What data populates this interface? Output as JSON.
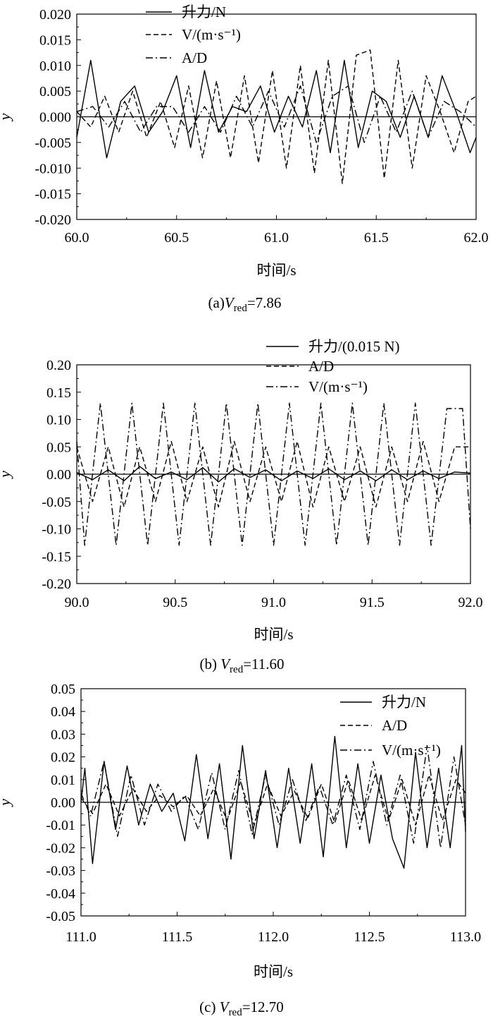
{
  "chart_data": [
    {
      "type": "line",
      "xlabel": "时间/s",
      "ylabel": "y",
      "xlim": [
        60.0,
        62.0
      ],
      "ylim": [
        -0.02,
        0.02
      ],
      "x_ticks": [
        "60.0",
        "60.5",
        "61.0",
        "61.5",
        "62.0"
      ],
      "y_ticks": [
        "0.020",
        "0.015",
        "0.010",
        "0.005",
        "0.000",
        "-0.005",
        "-0.010",
        "-0.015",
        "-0.020"
      ],
      "caption": {
        "prefix": "(a)",
        "sym": "V",
        "sub": "red",
        "value": "=7.86"
      },
      "legend_position": "top-center",
      "series": [
        {
          "name": "升力/N",
          "style": "solid",
          "x": [
            60.0,
            60.07,
            60.15,
            60.22,
            60.29,
            60.36,
            60.43,
            60.5,
            60.57,
            60.64,
            60.71,
            60.78,
            60.85,
            60.92,
            60.99,
            61.06,
            61.13,
            61.2,
            61.27,
            61.34,
            61.41,
            61.48,
            61.55,
            61.62,
            61.69,
            61.76,
            61.83,
            61.9,
            61.97,
            62.0
          ],
          "values": [
            -0.004,
            0.011,
            -0.008,
            0.003,
            0.006,
            -0.003,
            0.001,
            0.008,
            -0.006,
            0.009,
            -0.003,
            0.002,
            0.001,
            0.006,
            -0.003,
            0.004,
            -0.002,
            0.009,
            -0.007,
            0.011,
            -0.006,
            0.005,
            0.003,
            -0.004,
            0.004,
            -0.004,
            0.008,
            0.001,
            -0.007,
            -0.004
          ]
        },
        {
          "name": "V/(m·s⁻¹)",
          "style": "dash",
          "x": [
            60.0,
            60.07,
            60.14,
            60.21,
            60.28,
            60.35,
            60.42,
            60.49,
            60.56,
            60.63,
            60.7,
            60.77,
            60.84,
            60.91,
            60.98,
            61.05,
            61.12,
            61.19,
            61.26,
            61.33,
            61.4,
            61.47,
            61.54,
            61.61,
            61.68,
            61.75,
            61.82,
            61.89,
            61.96,
            62.0
          ],
          "values": [
            0.001,
            -0.002,
            0.004,
            -0.003,
            0.005,
            -0.004,
            0.003,
            -0.006,
            0.006,
            -0.008,
            0.007,
            -0.008,
            0.008,
            -0.009,
            0.009,
            -0.01,
            0.01,
            -0.011,
            0.011,
            -0.013,
            0.012,
            0.013,
            -0.012,
            0.011,
            -0.01,
            0.008,
            0.001,
            -0.007,
            0.003,
            0.004
          ]
        },
        {
          "name": "A/D",
          "style": "dashdot",
          "x": [
            60.0,
            60.08,
            60.16,
            60.24,
            60.32,
            60.4,
            60.48,
            60.56,
            60.64,
            60.72,
            60.8,
            60.88,
            60.96,
            61.04,
            61.12,
            61.2,
            61.28,
            61.36,
            61.44,
            61.52,
            61.6,
            61.68,
            61.76,
            61.84,
            61.92,
            62.0
          ],
          "values": [
            0.001,
            0.002,
            -0.002,
            0.003,
            -0.003,
            0.002,
            0.002,
            -0.003,
            0.002,
            -0.003,
            0.004,
            -0.002,
            0.005,
            -0.002,
            0.006,
            -0.005,
            0.004,
            0.006,
            -0.005,
            0.004,
            -0.003,
            0.005,
            -0.004,
            0.003,
            0.001,
            -0.002
          ]
        }
      ]
    },
    {
      "type": "line",
      "xlabel": "时间/s",
      "ylabel": "y",
      "xlim": [
        90.0,
        92.0
      ],
      "ylim": [
        -0.2,
        0.2
      ],
      "x_ticks": [
        "90.0",
        "90.5",
        "91.0",
        "91.5",
        "92.0"
      ],
      "y_ticks": [
        "0.20",
        "0.15",
        "0.10",
        "0.05",
        "0.00",
        "-0.05",
        "-0.10",
        "-0.15",
        "-0.20"
      ],
      "caption": {
        "prefix": "(b) ",
        "sym": "V",
        "sub": "red",
        "value": "=11.60"
      },
      "legend_position": "top-right",
      "series": [
        {
          "name": "升力/(0.015 N)",
          "style": "solid",
          "x": [
            90.0,
            90.08,
            90.16,
            90.24,
            90.32,
            90.4,
            90.48,
            90.56,
            90.64,
            90.72,
            90.8,
            90.88,
            90.96,
            91.04,
            91.12,
            91.2,
            91.28,
            91.36,
            91.44,
            91.52,
            91.6,
            91.68,
            91.76,
            91.84,
            91.92,
            92.0
          ],
          "values": [
            0.003,
            -0.01,
            0.008,
            -0.012,
            0.014,
            -0.008,
            0.004,
            -0.01,
            0.012,
            -0.014,
            0.01,
            -0.006,
            0.008,
            -0.012,
            0.006,
            -0.008,
            0.01,
            -0.01,
            0.006,
            -0.012,
            0.008,
            -0.01,
            0.006,
            -0.008,
            0.004,
            0.002
          ]
        },
        {
          "name": "A/D",
          "style": "dash",
          "x": [
            90.0,
            90.08,
            90.16,
            90.24,
            90.32,
            90.4,
            90.48,
            90.56,
            90.64,
            90.72,
            90.8,
            90.88,
            90.96,
            91.04,
            91.12,
            91.2,
            91.28,
            91.36,
            91.44,
            91.52,
            91.6,
            91.68,
            91.76,
            91.84,
            91.92,
            92.0
          ],
          "values": [
            0.05,
            -0.05,
            0.05,
            -0.06,
            0.05,
            -0.05,
            0.06,
            -0.05,
            0.05,
            -0.06,
            0.06,
            -0.05,
            0.05,
            -0.05,
            0.06,
            -0.06,
            0.05,
            -0.05,
            0.05,
            -0.06,
            0.05,
            -0.05,
            0.06,
            -0.05,
            0.05,
            0.05
          ]
        },
        {
          "name": "V/(m·s⁻¹)",
          "style": "dashdot",
          "x": [
            90.0,
            90.04,
            90.12,
            90.2,
            90.28,
            90.36,
            90.44,
            90.52,
            90.6,
            90.68,
            90.76,
            90.84,
            90.92,
            91.0,
            91.08,
            91.16,
            91.24,
            91.32,
            91.4,
            91.48,
            91.56,
            91.64,
            91.72,
            91.8,
            91.88,
            91.96,
            92.0
          ],
          "values": [
            0.06,
            -0.13,
            0.13,
            -0.13,
            0.13,
            -0.13,
            0.13,
            -0.13,
            0.13,
            -0.13,
            0.13,
            -0.13,
            0.13,
            -0.13,
            0.13,
            -0.13,
            0.13,
            -0.13,
            0.13,
            -0.13,
            0.13,
            -0.13,
            0.13,
            -0.13,
            0.12,
            0.12,
            -0.1
          ]
        }
      ]
    },
    {
      "type": "line",
      "xlabel": "时间/s",
      "ylabel": "y",
      "xlim": [
        111.0,
        113.0
      ],
      "ylim": [
        -0.05,
        0.05
      ],
      "x_ticks": [
        "111.0",
        "111.5",
        "112.0",
        "112.5",
        "113.0"
      ],
      "y_ticks": [
        "0.05",
        "0.04",
        "0.03",
        "0.02",
        "0.01",
        "0.00",
        "-0.01",
        "-0.02",
        "-0.03",
        "-0.04",
        "-0.05"
      ],
      "caption": {
        "prefix": "(c) ",
        "sym": "V",
        "sub": "red",
        "value": "=12.70"
      },
      "legend_position": "top-right",
      "series": [
        {
          "name": "升力/N",
          "style": "solid",
          "x": [
            111.0,
            111.02,
            111.06,
            111.12,
            111.18,
            111.24,
            111.3,
            111.36,
            111.42,
            111.48,
            111.54,
            111.6,
            111.66,
            111.72,
            111.78,
            111.84,
            111.9,
            111.96,
            112.02,
            112.08,
            112.14,
            112.2,
            112.26,
            112.32,
            112.38,
            112.44,
            112.5,
            112.56,
            112.62,
            112.68,
            112.74,
            112.8,
            112.86,
            112.92,
            112.98,
            113.0
          ],
          "values": [
            0.0,
            0.015,
            -0.027,
            0.018,
            -0.012,
            0.016,
            -0.01,
            0.008,
            -0.004,
            0.004,
            -0.017,
            0.021,
            -0.016,
            0.017,
            -0.025,
            0.025,
            -0.016,
            0.014,
            -0.02,
            0.015,
            -0.018,
            0.017,
            -0.024,
            0.029,
            -0.02,
            0.017,
            -0.018,
            0.012,
            -0.016,
            -0.029,
            0.022,
            -0.02,
            0.015,
            -0.02,
            0.025,
            -0.013
          ]
        },
        {
          "name": "A/D",
          "style": "dash",
          "x": [
            111.0,
            111.06,
            111.13,
            111.2,
            111.27,
            111.34,
            111.41,
            111.48,
            111.55,
            111.62,
            111.69,
            111.76,
            111.83,
            111.9,
            111.97,
            112.04,
            112.11,
            112.18,
            112.25,
            112.32,
            112.39,
            112.46,
            112.53,
            112.6,
            112.67,
            112.74,
            112.81,
            112.88,
            112.95,
            113.0
          ],
          "values": [
            0.002,
            -0.005,
            0.008,
            -0.006,
            0.006,
            -0.004,
            0.003,
            -0.002,
            0.003,
            -0.006,
            0.006,
            -0.008,
            0.009,
            -0.01,
            0.008,
            -0.006,
            0.005,
            -0.007,
            0.008,
            -0.009,
            0.01,
            -0.008,
            0.012,
            -0.008,
            0.01,
            -0.01,
            0.012,
            -0.008,
            0.01,
            0.004
          ]
        },
        {
          "name": "V/(m·s⁻¹)",
          "style": "dashdot",
          "x": [
            111.0,
            111.05,
            111.12,
            111.19,
            111.26,
            111.33,
            111.4,
            111.47,
            111.54,
            111.61,
            111.68,
            111.75,
            111.82,
            111.89,
            111.96,
            112.03,
            112.1,
            112.17,
            112.24,
            112.31,
            112.38,
            112.45,
            112.52,
            112.59,
            112.66,
            112.73,
            112.8,
            112.87,
            112.94,
            113.0
          ],
          "values": [
            0.004,
            -0.006,
            0.018,
            -0.015,
            0.012,
            -0.01,
            0.008,
            -0.004,
            0.003,
            -0.012,
            0.013,
            -0.012,
            0.014,
            -0.014,
            0.012,
            -0.01,
            0.01,
            -0.008,
            0.007,
            -0.01,
            0.012,
            -0.012,
            0.018,
            -0.01,
            0.012,
            -0.018,
            0.025,
            -0.02,
            0.02,
            -0.01
          ]
        }
      ]
    }
  ]
}
